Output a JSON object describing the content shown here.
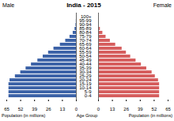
{
  "chart_data": {
    "type": "bar",
    "orientation": "horizontal",
    "title": "India - 2015",
    "xlabel": "Population (in millions)",
    "ylabel": "Age Group",
    "categories": [
      "0-4",
      "5-9",
      "10-14",
      "15-19",
      "20-24",
      "25-29",
      "30-34",
      "35-39",
      "40-44",
      "45-49",
      "50-54",
      "55-59",
      "60-64",
      "65-69",
      "70-74",
      "75-79",
      "80-84",
      "85-89",
      "90-94",
      "95-99",
      "100+"
    ],
    "series": [
      {
        "name": "Male",
        "color": "#3e64a8",
        "values": [
          63,
          63,
          63,
          63,
          62,
          57,
          52,
          47,
          42,
          36,
          31,
          26,
          21,
          15,
          10,
          6,
          3,
          1.3,
          0.4,
          0.1,
          0
        ]
      },
      {
        "name": "Female",
        "color": "#d65f5f",
        "values": [
          57,
          57,
          57,
          57,
          56,
          53,
          50,
          45,
          40,
          35,
          30,
          26,
          22,
          16,
          11,
          7,
          4,
          1.7,
          0.6,
          0.1,
          0
        ]
      }
    ],
    "xlim": [
      0,
      65
    ],
    "xticks": [
      0,
      13,
      26,
      39,
      52,
      65
    ]
  }
}
